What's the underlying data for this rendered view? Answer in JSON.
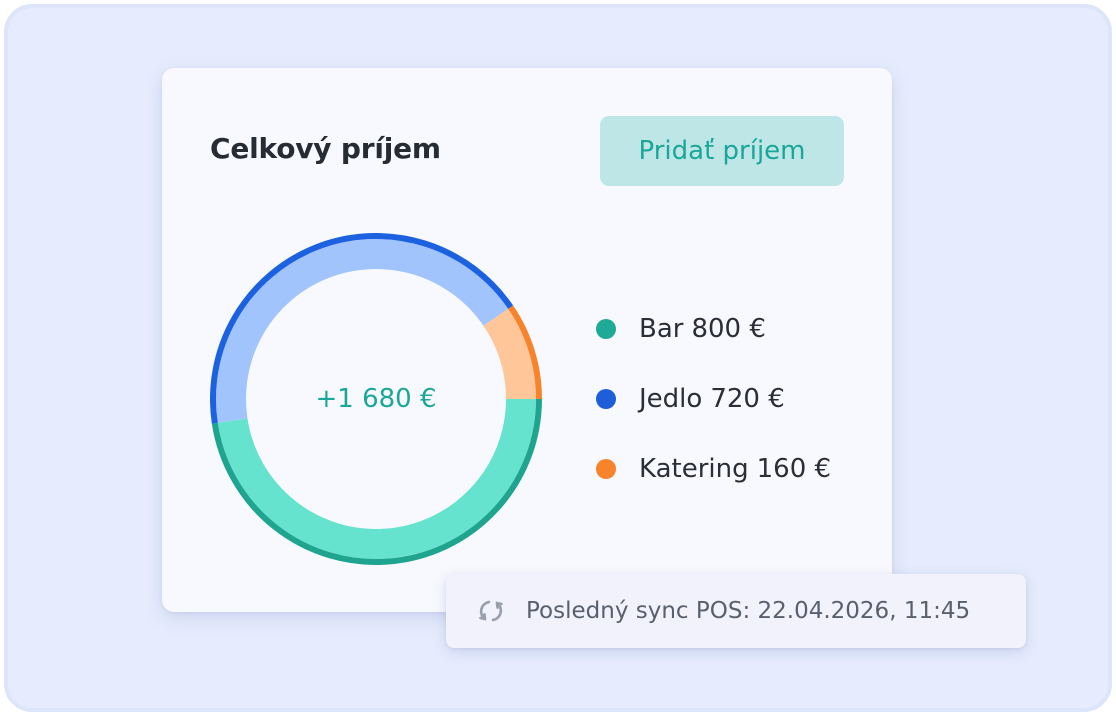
{
  "income_card": {
    "title": "Celkový príjem",
    "add_button_label": "Pridať príjem",
    "total": "+1 680 €",
    "currency": "€"
  },
  "chart_data": {
    "type": "pie",
    "categories": [
      "Bar",
      "Jedlo",
      "Katering"
    ],
    "values": [
      800,
      720,
      160
    ],
    "total_label": "+1 680 €",
    "colors": {
      "Bar": {
        "dot": "#1fa997",
        "fill": "#66e3cf",
        "stroke": "#1fa58f"
      },
      "Jedlo": {
        "dot": "#1e5fd9",
        "fill": "#a2c4fd",
        "stroke": "#1c62e0"
      },
      "Katering": {
        "dot": "#f7832b",
        "fill": "#ffc69a",
        "stroke": "#f7832b"
      }
    }
  },
  "legend": [
    {
      "label": "Bar",
      "value": "800 €",
      "color": "#1fa997"
    },
    {
      "label": "Jedlo",
      "value": "720 €",
      "color": "#1e5fd9"
    },
    {
      "label": "Katering",
      "value": "160 €",
      "color": "#f7832b"
    }
  ],
  "sync": {
    "icon": "sync-icon",
    "text": "Posledný sync POS: 22.04.2026, 11:45"
  },
  "colors": {
    "accent": "#1aa79a",
    "button_bg": "#bee6e6",
    "background": "#e6ecfd",
    "card": "#f8f9fe"
  }
}
